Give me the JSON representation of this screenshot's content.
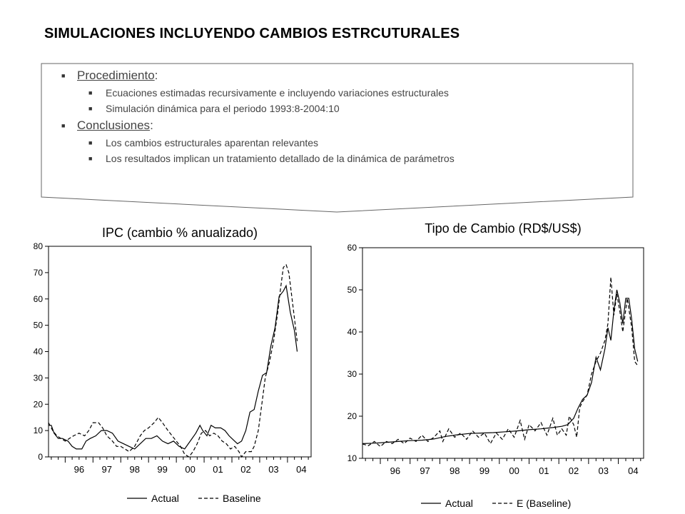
{
  "slide": {
    "title": "SIMULACIONES INCLUYENDO CAMBIOS ESTRCUTURALES"
  },
  "bullets": [
    {
      "label": "Procedimiento",
      "suffix": ":",
      "items": [
        "Ecuaciones estimadas recursivamente e incluyendo variaciones estructurales",
        "Simulación dinámica para el periodo 1993:8-2004:10"
      ]
    },
    {
      "label": "Conclusiones",
      "suffix": ":",
      "items": [
        "Los cambios estructurales aparentan relevantes",
        "Los resultados implican un tratamiento detallado de la dinámica de parámetros"
      ]
    }
  ],
  "chart_data": [
    {
      "type": "line",
      "title": "IPC (cambio % anualizado)",
      "xlim": [
        1995.4,
        2004.85
      ],
      "ylim": [
        0,
        80
      ],
      "yticks": [
        0,
        10,
        20,
        30,
        40,
        50,
        60,
        70,
        80
      ],
      "xticks": [
        "96",
        "97",
        "98",
        "99",
        "00",
        "01",
        "02",
        "03",
        "04"
      ],
      "legend_position": "bottom-center",
      "series": [
        {
          "name": "Actual",
          "style": "solid",
          "points": [
            [
              1995.4,
              12
            ],
            [
              1995.5,
              12
            ],
            [
              1995.6,
              9
            ],
            [
              1995.75,
              7
            ],
            [
              1995.9,
              7
            ],
            [
              1996.1,
              6
            ],
            [
              1996.25,
              4
            ],
            [
              1996.4,
              3
            ],
            [
              1996.6,
              3
            ],
            [
              1996.75,
              6
            ],
            [
              1996.9,
              7
            ],
            [
              1997.1,
              8
            ],
            [
              1997.3,
              10
            ],
            [
              1997.5,
              10
            ],
            [
              1997.7,
              9
            ],
            [
              1997.9,
              6
            ],
            [
              1998.1,
              5
            ],
            [
              1998.3,
              4
            ],
            [
              1998.5,
              3
            ],
            [
              1998.7,
              5
            ],
            [
              1998.9,
              7
            ],
            [
              1999.1,
              7
            ],
            [
              1999.3,
              8
            ],
            [
              1999.5,
              6
            ],
            [
              1999.7,
              5
            ],
            [
              1999.9,
              6
            ],
            [
              2000.1,
              4
            ],
            [
              2000.3,
              3
            ],
            [
              2000.5,
              6
            ],
            [
              2000.7,
              9
            ],
            [
              2000.85,
              12
            ],
            [
              2000.95,
              10
            ],
            [
              2001.1,
              8
            ],
            [
              2001.25,
              12
            ],
            [
              2001.4,
              11
            ],
            [
              2001.6,
              11
            ],
            [
              2001.75,
              10
            ],
            [
              2001.9,
              8
            ],
            [
              2002.1,
              6
            ],
            [
              2002.2,
              5
            ],
            [
              2002.35,
              6
            ],
            [
              2002.5,
              10
            ],
            [
              2002.65,
              17
            ],
            [
              2002.8,
              18
            ],
            [
              2002.95,
              25
            ],
            [
              2003.1,
              31
            ],
            [
              2003.25,
              32
            ],
            [
              2003.4,
              42
            ],
            [
              2003.55,
              49
            ],
            [
              2003.7,
              61
            ],
            [
              2003.85,
              63
            ],
            [
              2003.95,
              65
            ],
            [
              2004.1,
              55
            ],
            [
              2004.25,
              48
            ],
            [
              2004.35,
              40
            ]
          ]
        },
        {
          "name": "Baseline",
          "style": "dashed",
          "points": [
            [
              1995.4,
              13
            ],
            [
              1995.55,
              10
            ],
            [
              1995.7,
              8
            ],
            [
              1995.85,
              7
            ],
            [
              1996.0,
              6
            ],
            [
              1996.15,
              7
            ],
            [
              1996.3,
              8
            ],
            [
              1996.5,
              9
            ],
            [
              1996.7,
              8
            ],
            [
              1996.85,
              10
            ],
            [
              1997.0,
              13
            ],
            [
              1997.2,
              13
            ],
            [
              1997.35,
              11
            ],
            [
              1997.5,
              8
            ],
            [
              1997.7,
              6
            ],
            [
              1997.85,
              4
            ],
            [
              1998.0,
              4
            ],
            [
              1998.15,
              3
            ],
            [
              1998.3,
              2
            ],
            [
              1998.5,
              4
            ],
            [
              1998.7,
              8
            ],
            [
              1998.85,
              10
            ],
            [
              1999.0,
              11
            ],
            [
              1999.2,
              13
            ],
            [
              1999.35,
              15
            ],
            [
              1999.5,
              13
            ],
            [
              1999.7,
              10
            ],
            [
              1999.85,
              8
            ],
            [
              2000.0,
              6
            ],
            [
              2000.15,
              4
            ],
            [
              2000.3,
              1
            ],
            [
              2000.45,
              0
            ],
            [
              2000.6,
              2
            ],
            [
              2000.75,
              5
            ],
            [
              2000.9,
              9
            ],
            [
              2001.05,
              10
            ],
            [
              2001.2,
              8
            ],
            [
              2001.35,
              9
            ],
            [
              2001.5,
              8
            ],
            [
              2001.65,
              6
            ],
            [
              2001.8,
              5
            ],
            [
              2001.95,
              3
            ],
            [
              2002.1,
              4
            ],
            [
              2002.25,
              2
            ],
            [
              2002.35,
              0
            ],
            [
              2002.5,
              2
            ],
            [
              2002.7,
              2
            ],
            [
              2002.8,
              4
            ],
            [
              2002.95,
              10
            ],
            [
              2003.1,
              22
            ],
            [
              2003.2,
              30
            ],
            [
              2003.35,
              36
            ],
            [
              2003.5,
              44
            ],
            [
              2003.65,
              55
            ],
            [
              2003.75,
              64
            ],
            [
              2003.85,
              72
            ],
            [
              2003.95,
              73
            ],
            [
              2004.05,
              70
            ],
            [
              2004.2,
              57
            ],
            [
              2004.35,
              44
            ]
          ]
        }
      ]
    },
    {
      "type": "line",
      "title": "Tipo de Cambio (RD$/US$)",
      "xlim": [
        1995.4,
        2004.85
      ],
      "ylim": [
        10,
        60
      ],
      "yticks": [
        10,
        20,
        30,
        40,
        50,
        60
      ],
      "xticks": [
        "96",
        "97",
        "98",
        "99",
        "00",
        "01",
        "02",
        "03",
        "04"
      ],
      "legend_position": "bottom-center",
      "series": [
        {
          "name": "Actual",
          "style": "solid",
          "points": [
            [
              1995.4,
              13.5
            ],
            [
              1995.8,
              13.6
            ],
            [
              1996.2,
              13.8
            ],
            [
              1996.6,
              14
            ],
            [
              1997.0,
              14.2
            ],
            [
              1997.4,
              14.3
            ],
            [
              1997.8,
              14.6
            ],
            [
              1998.2,
              15.2
            ],
            [
              1998.6,
              15.6
            ],
            [
              1999.0,
              15.9
            ],
            [
              1999.4,
              16
            ],
            [
              1999.8,
              16.1
            ],
            [
              2000.2,
              16.3
            ],
            [
              2000.6,
              16.5
            ],
            [
              2001.0,
              16.8
            ],
            [
              2001.4,
              17
            ],
            [
              2001.8,
              17.3
            ],
            [
              2002.1,
              17.6
            ],
            [
              2002.3,
              18
            ],
            [
              2002.5,
              19.5
            ],
            [
              2002.65,
              22
            ],
            [
              2002.8,
              24
            ],
            [
              2002.95,
              25
            ],
            [
              2003.1,
              28
            ],
            [
              2003.25,
              34
            ],
            [
              2003.4,
              31
            ],
            [
              2003.55,
              36
            ],
            [
              2003.65,
              41
            ],
            [
              2003.75,
              38
            ],
            [
              2003.85,
              45
            ],
            [
              2003.95,
              50
            ],
            [
              2004.05,
              47
            ],
            [
              2004.15,
              42
            ],
            [
              2004.25,
              48
            ],
            [
              2004.35,
              48
            ],
            [
              2004.45,
              43
            ],
            [
              2004.55,
              36
            ],
            [
              2004.65,
              33
            ]
          ]
        },
        {
          "name": "E (Baseline)",
          "style": "dashed",
          "points": [
            [
              1995.4,
              13.4
            ],
            [
              1995.6,
              13
            ],
            [
              1995.8,
              14
            ],
            [
              1996.0,
              12.8
            ],
            [
              1996.2,
              14
            ],
            [
              1996.4,
              13.5
            ],
            [
              1996.6,
              14.5
            ],
            [
              1996.8,
              13.5
            ],
            [
              1997.0,
              14.8
            ],
            [
              1997.2,
              14
            ],
            [
              1997.4,
              15.5
            ],
            [
              1997.6,
              14
            ],
            [
              1997.8,
              15
            ],
            [
              1998.0,
              16.5
            ],
            [
              1998.1,
              14
            ],
            [
              1998.3,
              17
            ],
            [
              1998.5,
              15
            ],
            [
              1998.7,
              16
            ],
            [
              1998.9,
              14.5
            ],
            [
              1999.1,
              16.5
            ],
            [
              1999.3,
              15
            ],
            [
              1999.5,
              16
            ],
            [
              1999.7,
              13.5
            ],
            [
              1999.9,
              16
            ],
            [
              2000.1,
              14.5
            ],
            [
              2000.3,
              17
            ],
            [
              2000.5,
              15
            ],
            [
              2000.7,
              19
            ],
            [
              2000.85,
              14.5
            ],
            [
              2001.0,
              18
            ],
            [
              2001.2,
              16.5
            ],
            [
              2001.4,
              18.5
            ],
            [
              2001.6,
              15.5
            ],
            [
              2001.8,
              19.5
            ],
            [
              2001.95,
              15.5
            ],
            [
              2002.1,
              17
            ],
            [
              2002.25,
              15.5
            ],
            [
              2002.35,
              20
            ],
            [
              2002.5,
              18
            ],
            [
              2002.6,
              15
            ],
            [
              2002.7,
              22
            ],
            [
              2002.8,
              23.5
            ],
            [
              2002.95,
              25
            ],
            [
              2003.1,
              30
            ],
            [
              2003.25,
              33
            ],
            [
              2003.4,
              35
            ],
            [
              2003.55,
              38
            ],
            [
              2003.65,
              42
            ],
            [
              2003.75,
              53
            ],
            [
              2003.85,
              44
            ],
            [
              2003.95,
              49
            ],
            [
              2004.05,
              45
            ],
            [
              2004.15,
              40
            ],
            [
              2004.3,
              48
            ],
            [
              2004.45,
              41
            ],
            [
              2004.55,
              33
            ],
            [
              2004.65,
              32
            ]
          ]
        }
      ]
    }
  ]
}
